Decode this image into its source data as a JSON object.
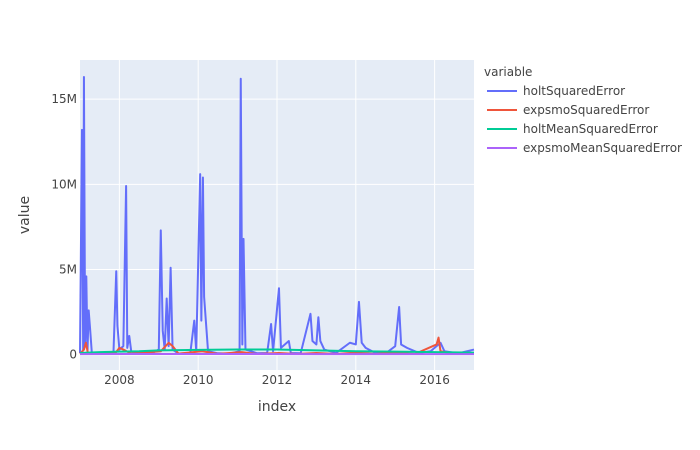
{
  "chart_data": {
    "type": "line",
    "xlabel": "index",
    "ylabel": "value",
    "xlim": [
      2007.0,
      2017.0
    ],
    "ylim": [
      -900000,
      17300000
    ],
    "x_ticks": [
      2008,
      2010,
      2012,
      2014,
      2016
    ],
    "x_tick_labels": [
      "2008",
      "2010",
      "2012",
      "2014",
      "2016"
    ],
    "y_ticks": [
      0,
      5000000,
      10000000,
      15000000
    ],
    "y_tick_labels": [
      "0",
      "5M",
      "10M",
      "15M"
    ],
    "grid": true,
    "legend": {
      "title": "variable",
      "placement": "right"
    },
    "series": [
      {
        "name": "holtSquaredError",
        "color": "#636efa",
        "points": [
          [
            2007.0,
            100000
          ],
          [
            2007.05,
            13200000
          ],
          [
            2007.08,
            300000
          ],
          [
            2007.1,
            16300000
          ],
          [
            2007.13,
            500000
          ],
          [
            2007.16,
            4600000
          ],
          [
            2007.19,
            200000
          ],
          [
            2007.22,
            2600000
          ],
          [
            2007.26,
            1400000
          ],
          [
            2007.3,
            100000
          ],
          [
            2007.4,
            60000
          ],
          [
            2007.55,
            80000
          ],
          [
            2007.7,
            40000
          ],
          [
            2007.85,
            150000
          ],
          [
            2007.92,
            4900000
          ],
          [
            2007.95,
            1700000
          ],
          [
            2008.0,
            300000
          ],
          [
            2008.1,
            500000
          ],
          [
            2008.17,
            9900000
          ],
          [
            2008.2,
            400000
          ],
          [
            2008.25,
            1100000
          ],
          [
            2008.3,
            200000
          ],
          [
            2008.5,
            80000
          ],
          [
            2008.8,
            60000
          ],
          [
            2009.0,
            300000
          ],
          [
            2009.05,
            7300000
          ],
          [
            2009.1,
            1400000
          ],
          [
            2009.15,
            300000
          ],
          [
            2009.2,
            3300000
          ],
          [
            2009.25,
            500000
          ],
          [
            2009.3,
            5100000
          ],
          [
            2009.35,
            300000
          ],
          [
            2009.5,
            60000
          ],
          [
            2009.8,
            100000
          ],
          [
            2009.9,
            2000000
          ],
          [
            2009.95,
            200000
          ],
          [
            2010.05,
            10600000
          ],
          [
            2010.08,
            2000000
          ],
          [
            2010.12,
            10400000
          ],
          [
            2010.15,
            3400000
          ],
          [
            2010.2,
            1800000
          ],
          [
            2010.25,
            200000
          ],
          [
            2010.5,
            80000
          ],
          [
            2010.8,
            60000
          ],
          [
            2011.05,
            200000
          ],
          [
            2011.08,
            16200000
          ],
          [
            2011.12,
            600000
          ],
          [
            2011.15,
            6800000
          ],
          [
            2011.2,
            300000
          ],
          [
            2011.5,
            80000
          ],
          [
            2011.75,
            100000
          ],
          [
            2011.85,
            1800000
          ],
          [
            2011.9,
            200000
          ],
          [
            2012.05,
            3900000
          ],
          [
            2012.1,
            400000
          ],
          [
            2012.3,
            800000
          ],
          [
            2012.35,
            100000
          ],
          [
            2012.6,
            80000
          ],
          [
            2012.85,
            2400000
          ],
          [
            2012.9,
            800000
          ],
          [
            2013.0,
            600000
          ],
          [
            2013.05,
            2200000
          ],
          [
            2013.1,
            800000
          ],
          [
            2013.2,
            300000
          ],
          [
            2013.5,
            100000
          ],
          [
            2013.85,
            700000
          ],
          [
            2014.0,
            600000
          ],
          [
            2014.08,
            3100000
          ],
          [
            2014.15,
            700000
          ],
          [
            2014.25,
            400000
          ],
          [
            2014.5,
            100000
          ],
          [
            2014.8,
            150000
          ],
          [
            2015.0,
            500000
          ],
          [
            2015.1,
            2800000
          ],
          [
            2015.15,
            600000
          ],
          [
            2015.3,
            400000
          ],
          [
            2015.6,
            100000
          ],
          [
            2015.9,
            200000
          ],
          [
            2016.05,
            500000
          ],
          [
            2016.15,
            700000
          ],
          [
            2016.25,
            200000
          ],
          [
            2016.6,
            80000
          ],
          [
            2017.0,
            300000
          ]
        ]
      },
      {
        "name": "expsmoSquaredError",
        "color": "#EF553B",
        "points": [
          [
            2007.0,
            50000
          ],
          [
            2007.1,
            300000
          ],
          [
            2007.15,
            700000
          ],
          [
            2007.2,
            100000
          ],
          [
            2007.4,
            60000
          ],
          [
            2007.9,
            100000
          ],
          [
            2008.0,
            400000
          ],
          [
            2008.1,
            300000
          ],
          [
            2008.3,
            60000
          ],
          [
            2009.05,
            200000
          ],
          [
            2009.25,
            700000
          ],
          [
            2009.35,
            500000
          ],
          [
            2009.5,
            60000
          ],
          [
            2010.1,
            200000
          ],
          [
            2010.5,
            50000
          ],
          [
            2011.1,
            150000
          ],
          [
            2011.5,
            40000
          ],
          [
            2012.05,
            100000
          ],
          [
            2012.5,
            40000
          ],
          [
            2013.0,
            100000
          ],
          [
            2013.5,
            40000
          ],
          [
            2014.0,
            120000
          ],
          [
            2014.5,
            40000
          ],
          [
            2015.0,
            120000
          ],
          [
            2015.5,
            40000
          ],
          [
            2016.05,
            600000
          ],
          [
            2016.1,
            1000000
          ],
          [
            2016.15,
            200000
          ],
          [
            2016.5,
            50000
          ],
          [
            2017.0,
            50000
          ]
        ]
      },
      {
        "name": "holtMeanSquaredError",
        "color": "#00cc96",
        "points": [
          [
            2007.0,
            100000
          ],
          [
            2007.5,
            150000
          ],
          [
            2008.0,
            180000
          ],
          [
            2008.5,
            200000
          ],
          [
            2009.0,
            250000
          ],
          [
            2010.0,
            280000
          ],
          [
            2011.0,
            300000
          ],
          [
            2012.0,
            300000
          ],
          [
            2013.0,
            250000
          ],
          [
            2014.0,
            200000
          ],
          [
            2015.0,
            180000
          ],
          [
            2016.0,
            150000
          ],
          [
            2017.0,
            120000
          ]
        ]
      },
      {
        "name": "expsmoMeanSquaredError",
        "color": "#ab63fa",
        "points": [
          [
            2007.0,
            30000
          ],
          [
            2009.0,
            40000
          ],
          [
            2011.0,
            40000
          ],
          [
            2013.0,
            35000
          ],
          [
            2015.0,
            30000
          ],
          [
            2017.0,
            30000
          ]
        ]
      }
    ]
  }
}
